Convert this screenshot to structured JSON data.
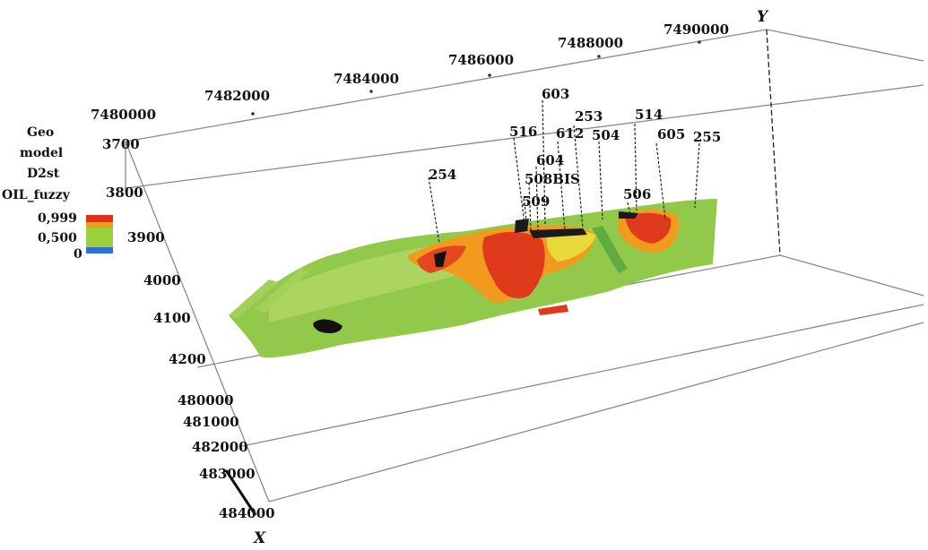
{
  "legend": {
    "title_lines": [
      "Geo",
      "model",
      "D2st",
      "OIL_fuzzy"
    ],
    "stops": [
      {
        "label": "0,999",
        "color": "#e0321a"
      },
      {
        "label": "0,500",
        "color": "#9ccf3c"
      },
      {
        "label": "0",
        "color": "#2f6fd6"
      }
    ]
  },
  "axes": {
    "y_name": "Y",
    "x_name": "X",
    "y_ticks": [
      "7480000",
      "7482000",
      "7484000",
      "7486000",
      "7488000",
      "7490000"
    ],
    "x_ticks": [
      "480000",
      "481000",
      "482000",
      "483000",
      "484000"
    ],
    "depth_ticks": [
      "3700",
      "3800",
      "3900",
      "4000",
      "4100",
      "4200"
    ]
  },
  "wells": [
    "254",
    "516",
    "603",
    "253",
    "514",
    "612",
    "504",
    "605",
    "255",
    "604",
    "508BIS",
    "509",
    "506"
  ],
  "colors": {
    "box_line": "#8a8a8a",
    "surface_green": "#93c94a",
    "surface_red": "#e03a1c",
    "surface_orange": "#f29a1e",
    "surface_yellow": "#e8d83a",
    "well_line": "#222222"
  }
}
